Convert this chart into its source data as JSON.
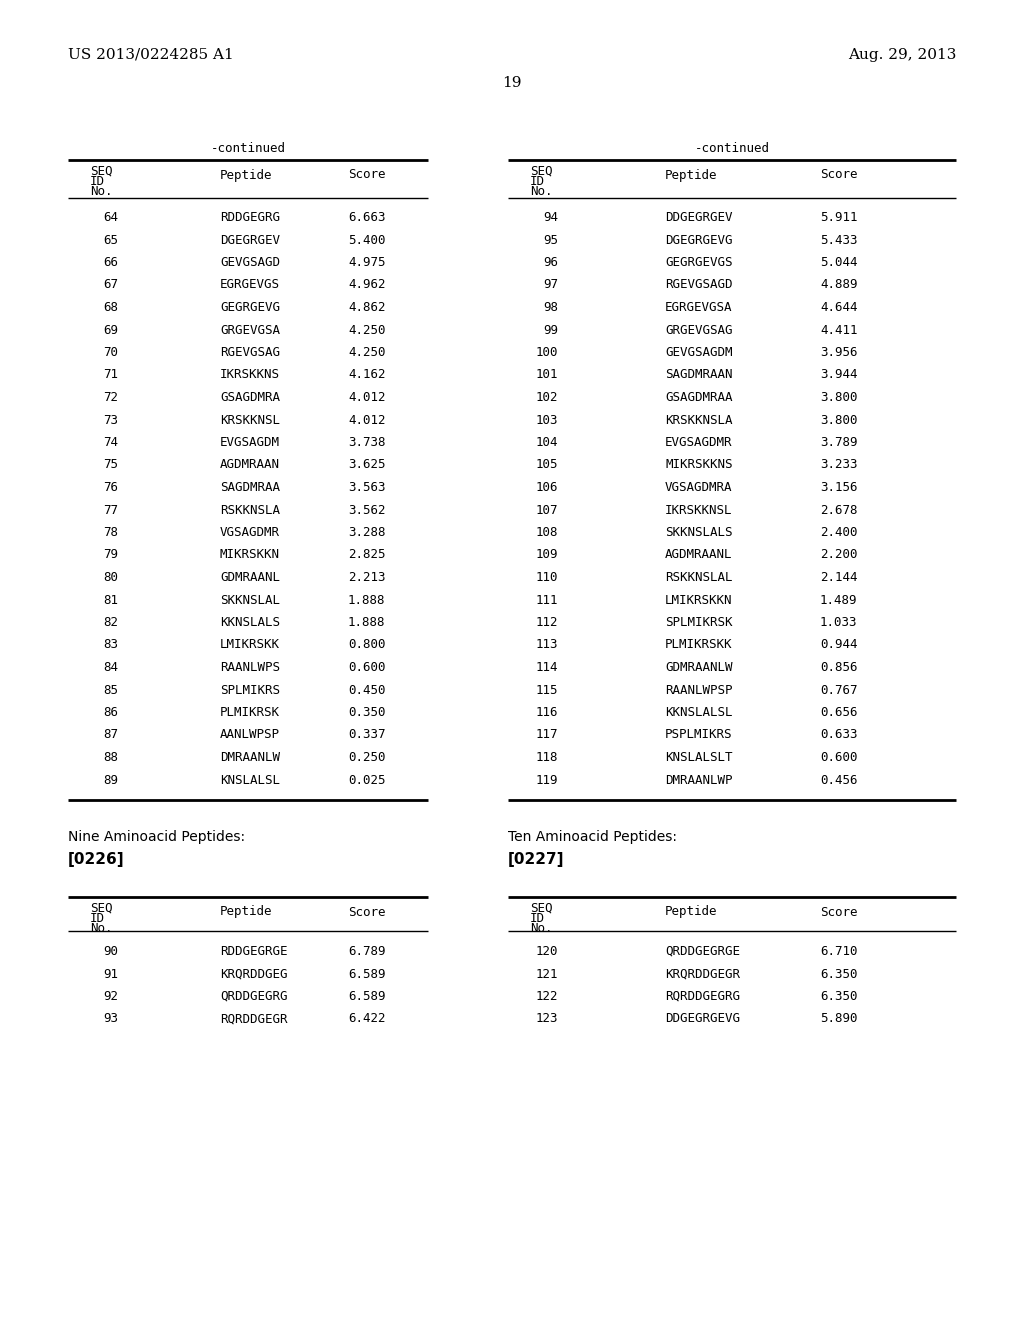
{
  "header_left": "US 2013/0224285 A1",
  "header_right": "Aug. 29, 2013",
  "page_number": "19",
  "continued_label": "-continued",
  "left_table": {
    "rows": [
      [
        "64",
        "RDDGEGRG",
        "6.663"
      ],
      [
        "65",
        "DGEGRGEV",
        "5.400"
      ],
      [
        "66",
        "GEVGSAGD",
        "4.975"
      ],
      [
        "67",
        "EGRGEVGS",
        "4.962"
      ],
      [
        "68",
        "GEGRGEVG",
        "4.862"
      ],
      [
        "69",
        "GRGEVGSA",
        "4.250"
      ],
      [
        "70",
        "RGEVGSAG",
        "4.250"
      ],
      [
        "71",
        "IKRSKKNS",
        "4.162"
      ],
      [
        "72",
        "GSAGDMRA",
        "4.012"
      ],
      [
        "73",
        "KRSKKNSL",
        "4.012"
      ],
      [
        "74",
        "EVGSAGDM",
        "3.738"
      ],
      [
        "75",
        "AGDMRAAN",
        "3.625"
      ],
      [
        "76",
        "SAGDMRAA",
        "3.563"
      ],
      [
        "77",
        "RSKKNSLA",
        "3.562"
      ],
      [
        "78",
        "VGSAGDMR",
        "3.288"
      ],
      [
        "79",
        "MIKRSKKN",
        "2.825"
      ],
      [
        "80",
        "GDMRAANL",
        "2.213"
      ],
      [
        "81",
        "SKKNSLAL",
        "1.888"
      ],
      [
        "82",
        "KKNSLALS",
        "1.888"
      ],
      [
        "83",
        "LMIKRSKK",
        "0.800"
      ],
      [
        "84",
        "RAANLWPS",
        "0.600"
      ],
      [
        "85",
        "SPLMIKRS",
        "0.450"
      ],
      [
        "86",
        "PLMIKRSK",
        "0.350"
      ],
      [
        "87",
        "AANLWPSP",
        "0.337"
      ],
      [
        "88",
        "DMRAANLW",
        "0.250"
      ],
      [
        "89",
        "KNSLALSL",
        "0.025"
      ]
    ]
  },
  "right_table": {
    "rows": [
      [
        "94",
        "DDGEGRGEV",
        "5.911"
      ],
      [
        "95",
        "DGEGRGEVG",
        "5.433"
      ],
      [
        "96",
        "GEGRGEVGS",
        "5.044"
      ],
      [
        "97",
        "RGEVGSAGD",
        "4.889"
      ],
      [
        "98",
        "EGRGEVGSA",
        "4.644"
      ],
      [
        "99",
        "GRGEVGSAG",
        "4.411"
      ],
      [
        "100",
        "GEVGSAGDM",
        "3.956"
      ],
      [
        "101",
        "SAGDMRAAN",
        "3.944"
      ],
      [
        "102",
        "GSAGDMRAA",
        "3.800"
      ],
      [
        "103",
        "KRSKKNSL A",
        "3.800"
      ],
      [
        "104",
        "EVGSAGDMR",
        "3.789"
      ],
      [
        "105",
        "MIKRSKKNS",
        "3.233"
      ],
      [
        "106",
        "VGSAGDMRA",
        "3.156"
      ],
      [
        "107",
        "IKRSKKNSL",
        "2.678"
      ],
      [
        "108",
        "SKKNSLALS",
        "2.400"
      ],
      [
        "109",
        "AGDMRAANL",
        "2.200"
      ],
      [
        "110",
        "RSKKNSLAL",
        "2.144"
      ],
      [
        "111",
        "LMIKRSKKN",
        "1.489"
      ],
      [
        "112",
        "SPLMIKRSK",
        "1.033"
      ],
      [
        "113",
        "PLMIKRSKK",
        "0.944"
      ],
      [
        "114",
        "GDMRAANLW",
        "0.856"
      ],
      [
        "115",
        "RAANLWPSP",
        "0.767"
      ],
      [
        "116",
        "KKNSLALSL",
        "0.656"
      ],
      [
        "117",
        "PSPLMIKRS",
        "0.633"
      ],
      [
        "118",
        "KNSLALSLT",
        "0.600"
      ],
      [
        "119",
        "DMRAANLWP",
        "0.456"
      ]
    ]
  },
  "section_label_left": "Nine Aminoacid Peptides:",
  "section_ref_left": "[0226]",
  "section_label_right": "Ten Aminoacid Peptides:",
  "section_ref_right": "[0227]",
  "bottom_left_table": {
    "rows": [
      [
        "90",
        "RDDGEGRGE",
        "6.789"
      ],
      [
        "91",
        "KRQRDDGEG",
        "6.589"
      ],
      [
        "92",
        "QRDDGEGRG",
        "6.589"
      ],
      [
        "93",
        "RQRDDGEGR",
        "6.422"
      ]
    ]
  },
  "bottom_right_table": {
    "rows": [
      [
        "120",
        "QRDDGEGRGE",
        "6.710"
      ],
      [
        "121",
        "KRQRDDGEGR",
        "6.350"
      ],
      [
        "122",
        "RQRDDGEGRG",
        "6.350"
      ],
      [
        "123",
        "DDGEGRGEVG",
        "5.890"
      ]
    ]
  }
}
